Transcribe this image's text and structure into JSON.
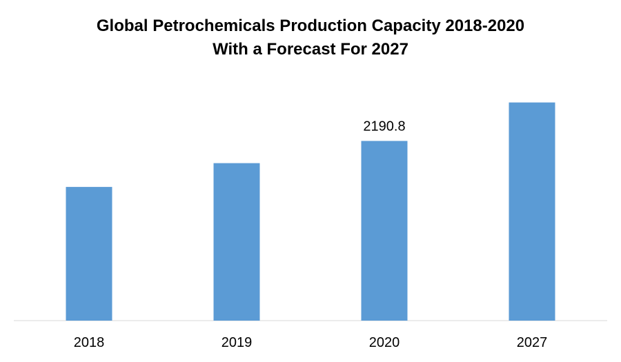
{
  "colors": {
    "background": "#ffffff",
    "bar": "#5b9bd5",
    "axis": "#d9d9d9",
    "text": "#000000"
  },
  "chart_data": {
    "type": "bar",
    "title_lines": [
      "Global Petrochemicals Production Capacity 2018-2020",
      "With a Forecast For 2027"
    ],
    "categories": [
      "2018",
      "2019",
      "2020",
      "2027"
    ],
    "values": [
      1630,
      1920,
      2190.8,
      2660
    ],
    "data_labels": [
      {
        "category_index": 2,
        "text": "2190.8"
      }
    ],
    "xlabel": "",
    "ylabel": "",
    "ylim": [
      0,
      2900
    ],
    "grid": false,
    "legend": "none"
  }
}
